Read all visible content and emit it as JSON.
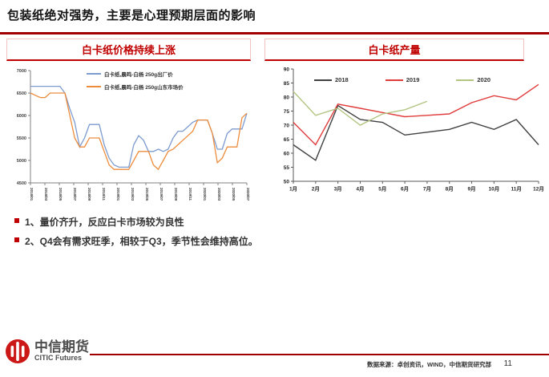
{
  "slide": {
    "title": "包装纸绝对强势，主要是心理预期层面的影响",
    "bullets": [
      "1、量价齐升，反应白卡市场较为良性",
      "2、Q4会有需求旺季，相较于Q3，季节性会维持高位。"
    ],
    "footer": {
      "logo_cn": "中信期货",
      "logo_en": "CITIC Futures",
      "source": "数据来源：卓创资讯，WIND，中信期货研究部",
      "page_number": "11"
    },
    "colors": {
      "accent_red": "#c00000",
      "rule_red": "#a00000",
      "logo_red": "#cc1717"
    }
  },
  "chart_data": [
    {
      "type": "line",
      "title": "白卡纸价格持续上涨",
      "ylim": [
        4500,
        7000
      ],
      "yticks": [
        4500,
        5000,
        5500,
        6000,
        6500,
        7000
      ],
      "x_labels": [
        "2018/01",
        "2018/03",
        "2018/05",
        "2018/07",
        "2018/09",
        "2018/11",
        "2019/01",
        "2019/03",
        "2019/05",
        "2019/07",
        "2019/09",
        "2019/11",
        "2020/01",
        "2020/03",
        "2020/05",
        "2020/07"
      ],
      "legend_position": "top-center-inside",
      "grid": false,
      "series": [
        {
          "name": "白卡纸,晨鸣-白杨 250g出厂价",
          "color": "#7c9bcf",
          "values": [
            6650,
            6650,
            6650,
            6650,
            6650,
            6650,
            6650,
            6500,
            6150,
            5850,
            5300,
            5500,
            5800,
            5800,
            5800,
            5350,
            5050,
            4900,
            4850,
            4850,
            4850,
            5350,
            5550,
            5450,
            5200,
            5200,
            5250,
            5200,
            5250,
            5500,
            5650,
            5650,
            5750,
            5850,
            5900,
            5900,
            5900,
            5600,
            5250,
            5250,
            5600,
            5700,
            5700,
            5700,
            6050
          ]
        },
        {
          "name": "白卡纸,晨鸣-白杨 250g山东市场价",
          "color": "#ed8c3c",
          "values": [
            6500,
            6450,
            6400,
            6400,
            6500,
            6500,
            6500,
            6500,
            6000,
            5500,
            5300,
            5300,
            5500,
            5500,
            5500,
            5200,
            4900,
            4800,
            4800,
            4800,
            4800,
            5000,
            5200,
            5200,
            5200,
            4900,
            4800,
            5000,
            5200,
            5250,
            5350,
            5450,
            5550,
            5650,
            5900,
            5900,
            5900,
            5600,
            4950,
            5050,
            5300,
            5300,
            5300,
            5950,
            6050
          ]
        }
      ]
    },
    {
      "type": "line",
      "title": "白卡纸产量",
      "ylim": [
        50,
        90
      ],
      "yticks": [
        50,
        55,
        60,
        65,
        70,
        75,
        80,
        85,
        90
      ],
      "categories": [
        "1月",
        "2月",
        "3月",
        "4月",
        "5月",
        "6月",
        "7月",
        "8月",
        "9月",
        "10月",
        "11月",
        "12月"
      ],
      "legend_position": "top-inside",
      "grid": false,
      "series": [
        {
          "name": "2018",
          "color": "#404040",
          "values": [
            63,
            57.5,
            77,
            72,
            71,
            66.5,
            67.5,
            68.5,
            71,
            68.5,
            72,
            63
          ]
        },
        {
          "name": "2019",
          "color": "#e03c3c",
          "values": [
            71,
            63,
            77.5,
            76,
            74.5,
            73,
            73.5,
            74,
            78,
            80.5,
            79,
            84.5
          ]
        },
        {
          "name": "2020",
          "color": "#b3c583",
          "values": [
            82,
            73.5,
            76,
            70,
            74,
            75.5,
            78.5
          ]
        }
      ]
    }
  ]
}
